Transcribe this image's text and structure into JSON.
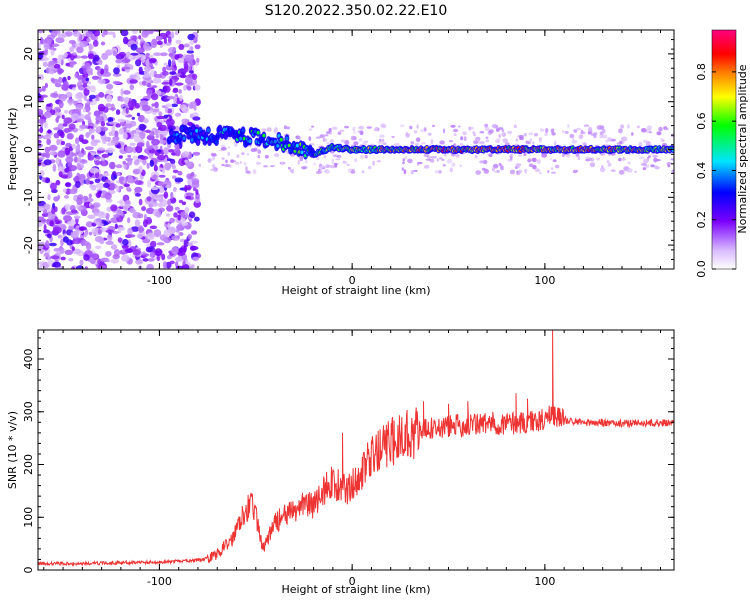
{
  "title": "S120.2022.350.02.22.E10",
  "chart_data": [
    {
      "type": "heatmap",
      "xlabel": "Height of straight line (km)",
      "ylabel": "Frequency (Hz)",
      "xlim": [
        -163,
        167
      ],
      "ylim": [
        -25,
        25
      ],
      "x_ticks": [
        -100,
        0,
        100
      ],
      "y_ticks": [
        -20,
        -10,
        0,
        10,
        20
      ],
      "colorbar": {
        "label": "Normalized spectral amplitude",
        "range": [
          0,
          0.97
        ],
        "ticks": [
          0.0,
          0.2,
          0.4,
          0.6,
          0.8
        ],
        "colors": [
          "#ffffff",
          "#7a00ff",
          "#0000ff",
          "#00e5ff",
          "#00ff00",
          "#ffff00",
          "#ff8000",
          "#ff0000",
          "#ff0080"
        ]
      },
      "ridge": [
        {
          "x": -95,
          "y": 3,
          "a": 0.25
        },
        {
          "x": -80,
          "y": 3,
          "a": 0.3
        },
        {
          "x": -60,
          "y": 3,
          "a": 0.4
        },
        {
          "x": -45,
          "y": 2,
          "a": 0.45
        },
        {
          "x": -30,
          "y": 1,
          "a": 0.5
        },
        {
          "x": -20,
          "y": -1,
          "a": 0.45
        },
        {
          "x": -10,
          "y": 0.5,
          "a": 0.55
        },
        {
          "x": 0,
          "y": 0,
          "a": 0.6
        },
        {
          "x": 20,
          "y": 0,
          "a": 0.7
        },
        {
          "x": 50,
          "y": 0,
          "a": 0.75
        },
        {
          "x": 80,
          "y": 0,
          "a": 0.75
        },
        {
          "x": 100,
          "y": 0,
          "a": 0.7
        },
        {
          "x": 120,
          "y": 0,
          "a": 0.75
        },
        {
          "x": 167,
          "y": 0,
          "a": 0.6
        }
      ],
      "noise_region_x": [
        -163,
        -80
      ]
    },
    {
      "type": "line",
      "xlabel": "Height of straight line (km)",
      "ylabel": "SNR (10 * v/v)",
      "xlim": [
        -163,
        167
      ],
      "ylim": [
        0,
        455
      ],
      "x_ticks": [
        -100,
        0,
        100
      ],
      "y_ticks": [
        0,
        100,
        200,
        300,
        400
      ],
      "color": "#ee3333",
      "series": [
        {
          "x": [
            -163,
            -140,
            -120,
            -100,
            -80,
            -75,
            -70,
            -62,
            -58,
            -52,
            -46,
            -40,
            -36,
            -30,
            -25,
            -20,
            -15,
            -10,
            -5,
            0,
            5,
            10,
            15,
            20,
            25,
            30,
            35,
            40,
            50,
            60,
            70,
            80,
            90,
            100,
            104,
            108,
            120,
            140,
            167
          ],
          "values": [
            12,
            12,
            14,
            15,
            18,
            22,
            30,
            60,
            100,
            130,
            40,
            90,
            100,
            110,
            130,
            120,
            150,
            170,
            150,
            160,
            190,
            210,
            230,
            240,
            255,
            260,
            262,
            268,
            272,
            275,
            278,
            278,
            280,
            285,
            300,
            285,
            280,
            278,
            280
          ]
        }
      ],
      "spikes": [
        {
          "x": 104,
          "y": 455
        },
        {
          "x": 37,
          "y": 320
        },
        {
          "x": 85,
          "y": 335
        },
        {
          "x": 91,
          "y": 325
        },
        {
          "x": -5,
          "y": 260
        },
        {
          "x": 50,
          "y": 315
        },
        {
          "x": 60,
          "y": 320
        }
      ]
    }
  ]
}
